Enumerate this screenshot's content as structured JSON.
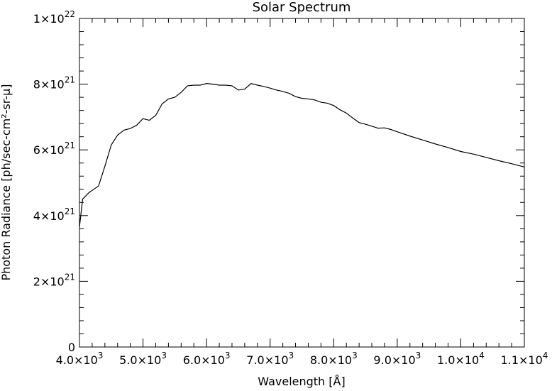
{
  "chart_data": {
    "type": "line",
    "title": "Solar Spectrum",
    "xlabel": "Wavelength [Å]",
    "ylabel": "Photon Radiance [ph/sec-cm²-sr-μ]",
    "xlim": [
      4000,
      11000
    ],
    "ylim": [
      0,
      1e+22
    ],
    "grid": false,
    "x_ticks": [
      {
        "value": 4000,
        "mantissa": "4.0×10",
        "exp": "3"
      },
      {
        "value": 5000,
        "mantissa": "5.0×10",
        "exp": "3"
      },
      {
        "value": 6000,
        "mantissa": "6.0×10",
        "exp": "3"
      },
      {
        "value": 7000,
        "mantissa": "7.0×10",
        "exp": "3"
      },
      {
        "value": 8000,
        "mantissa": "8.0×10",
        "exp": "3"
      },
      {
        "value": 9000,
        "mantissa": "9.0×10",
        "exp": "3"
      },
      {
        "value": 10000,
        "mantissa": "1.0×10",
        "exp": "4"
      },
      {
        "value": 11000,
        "mantissa": "1.1×10",
        "exp": "4"
      }
    ],
    "y_ticks": [
      {
        "value": 0,
        "mantissa": "0",
        "exp": ""
      },
      {
        "value": 2e+21,
        "mantissa": "2×10",
        "exp": "21"
      },
      {
        "value": 4e+21,
        "mantissa": "4×10",
        "exp": "21"
      },
      {
        "value": 6e+21,
        "mantissa": "6×10",
        "exp": "21"
      },
      {
        "value": 8e+21,
        "mantissa": "8×10",
        "exp": "21"
      },
      {
        "value": 1e+22,
        "mantissa": "1×10",
        "exp": "22"
      }
    ],
    "series": [
      {
        "x": [
          4000,
          4050,
          4150,
          4300,
          4400,
          4500,
          4600,
          4700,
          4800,
          4900,
          5000,
          5100,
          5200,
          5300,
          5400,
          5500,
          5600,
          5700,
          5800,
          5900,
          6000,
          6100,
          6200,
          6300,
          6400,
          6500,
          6600,
          6700,
          6800,
          6900,
          7000,
          7100,
          7200,
          7300,
          7400,
          7500,
          7600,
          7700,
          7800,
          7900,
          8000,
          8100,
          8200,
          8300,
          8400,
          8500,
          8600,
          8700,
          8800,
          8900,
          9000,
          9200,
          9400,
          9600,
          9800,
          10000,
          10200,
          10400,
          10600,
          10800,
          11000
        ],
        "y": [
          3.65e+21,
          4.5e+21,
          4.7e+21,
          4.9e+21,
          5.5e+21,
          6.15e+21,
          6.45e+21,
          6.6e+21,
          6.65e+21,
          6.75e+21,
          6.95e+21,
          6.9e+21,
          7.05e+21,
          7.4e+21,
          7.55e+21,
          7.6e+21,
          7.75e+21,
          7.95e+21,
          7.97e+21,
          7.97e+21,
          8.02e+21,
          8e+21,
          7.97e+21,
          7.97e+21,
          7.95e+21,
          7.82e+21,
          7.85e+21,
          8.02e+21,
          7.97e+21,
          7.93e+21,
          7.88e+21,
          7.82e+21,
          7.78e+21,
          7.72e+21,
          7.62e+21,
          7.57e+21,
          7.55e+21,
          7.52e+21,
          7.45e+21,
          7.42e+21,
          7.35e+21,
          7.22e+21,
          7.12e+21,
          6.97e+21,
          6.83e+21,
          6.78e+21,
          6.72e+21,
          6.66e+21,
          6.67e+21,
          6.62e+21,
          6.55e+21,
          6.42e+21,
          6.3e+21,
          6.18e+21,
          6.07e+21,
          5.95e+21,
          5.87e+21,
          5.77e+21,
          5.67e+21,
          5.58e+21,
          5.48e+21
        ]
      }
    ]
  }
}
